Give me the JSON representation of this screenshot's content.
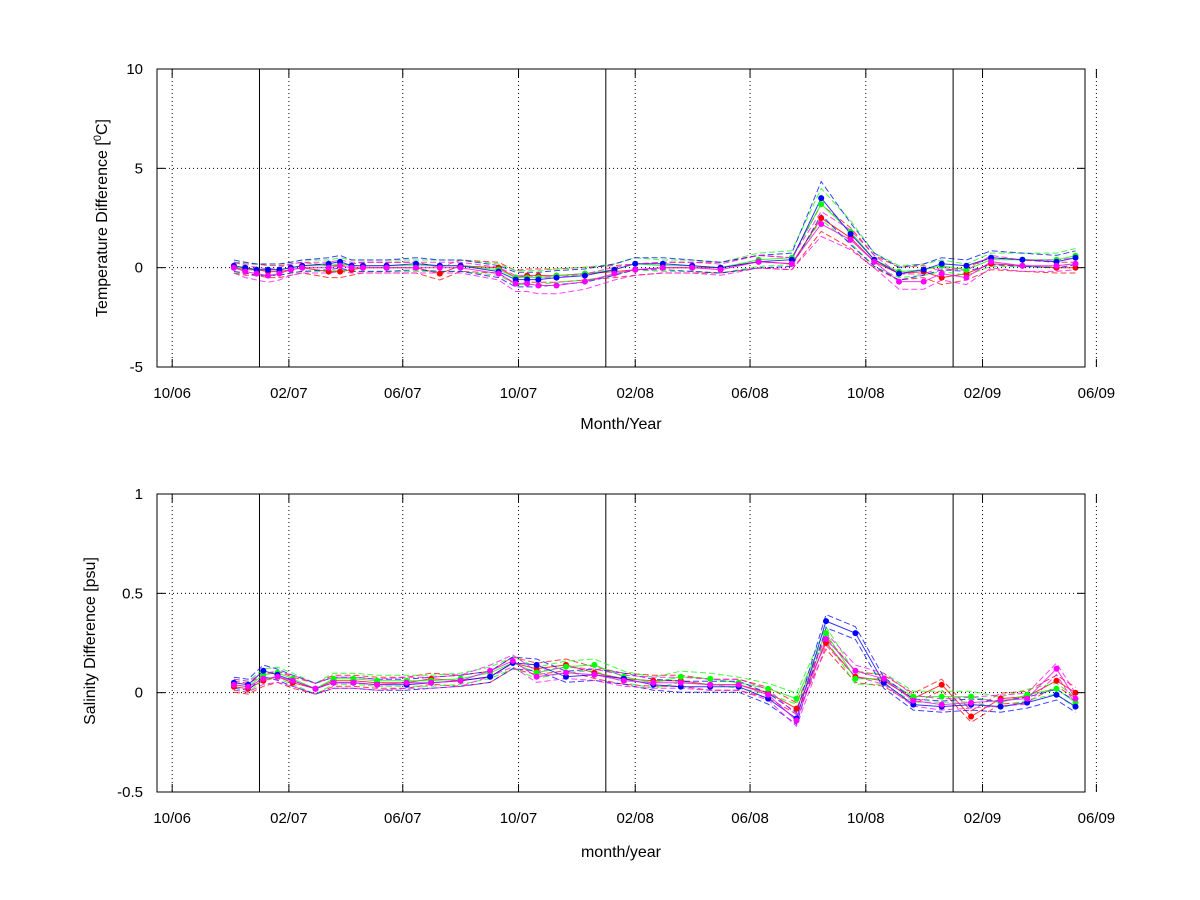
{
  "chart_data": [
    {
      "type": "scatter",
      "xlabel": "Month/Year",
      "ylabel": "Temperature Difference [°C]",
      "ylabel_parts": {
        "before": "Temperature Difference [",
        "sup": "0",
        "after": "C]"
      },
      "ylim": [
        -5,
        10
      ],
      "yticks": [
        -5,
        0,
        5,
        10
      ],
      "xlim": [
        "2006-09-15",
        "2009-05-20"
      ],
      "xticks": [
        "2006-10-01",
        "2007-02-01",
        "2007-06-01",
        "2007-10-01",
        "2008-02-01",
        "2008-06-01",
        "2008-10-01",
        "2009-02-01",
        "2009-06-01"
      ],
      "xtick_labels": [
        "10/06",
        "02/07",
        "06/07",
        "10/07",
        "02/08",
        "06/08",
        "10/08",
        "02/09",
        "06/09"
      ],
      "grid": true,
      "year_lines": [
        "2007-01-01",
        "2008-01-01",
        "2009-01-01"
      ],
      "series": [
        {
          "color": "#ff0000",
          "x": [
            "2006-12-05",
            "2006-12-17",
            "2006-12-29",
            "2007-01-10",
            "2007-01-22",
            "2007-02-03",
            "2007-02-15",
            "2007-03-15",
            "2007-03-27",
            "2007-04-08",
            "2007-04-20",
            "2007-05-15",
            "2007-06-15",
            "2007-07-10",
            "2007-08-01",
            "2007-09-10",
            "2007-09-28",
            "2007-10-10",
            "2007-10-22",
            "2007-11-10",
            "2007-12-10",
            "2008-01-10",
            "2008-02-01",
            "2008-03-01",
            "2008-04-01",
            "2008-05-01",
            "2008-06-10",
            "2008-07-15",
            "2008-08-15",
            "2008-09-15",
            "2008-10-10",
            "2008-11-05",
            "2008-12-01",
            "2008-12-20",
            "2009-01-15",
            "2009-02-10",
            "2009-03-15",
            "2009-04-20",
            "2009-05-10"
          ],
          "y": [
            0.0,
            -0.1,
            -0.1,
            -0.2,
            -0.2,
            -0.1,
            0.0,
            -0.2,
            -0.2,
            -0.1,
            0.0,
            0.0,
            0.0,
            -0.3,
            0.1,
            0.0,
            -0.5,
            -0.4,
            -0.4,
            -0.4,
            -0.3,
            -0.2,
            -0.1,
            0.0,
            0.0,
            0.0,
            0.3,
            0.2,
            2.5,
            1.5,
            0.3,
            -0.3,
            -0.2,
            -0.5,
            -0.3,
            0.2,
            0.1,
            0.0,
            0.0
          ]
        },
        {
          "color": "#00ff00",
          "x": [
            "2006-12-05",
            "2006-12-17",
            "2006-12-29",
            "2007-01-10",
            "2007-01-22",
            "2007-02-03",
            "2007-02-15",
            "2007-03-15",
            "2007-03-27",
            "2007-04-08",
            "2007-04-20",
            "2007-05-15",
            "2007-06-15",
            "2007-07-10",
            "2007-08-01",
            "2007-09-10",
            "2007-09-28",
            "2007-10-10",
            "2007-10-22",
            "2007-11-10",
            "2007-12-10",
            "2008-01-10",
            "2008-02-01",
            "2008-03-01",
            "2008-04-01",
            "2008-05-01",
            "2008-06-10",
            "2008-07-15",
            "2008-08-15",
            "2008-09-15",
            "2008-10-10",
            "2008-11-05",
            "2008-12-01",
            "2008-12-20",
            "2009-01-15",
            "2009-02-10",
            "2009-03-15",
            "2009-04-20",
            "2009-05-10"
          ],
          "y": [
            0.0,
            0.0,
            -0.1,
            -0.1,
            -0.1,
            0.0,
            0.1,
            0.1,
            0.2,
            0.1,
            0.1,
            0.1,
            0.1,
            0.1,
            0.1,
            -0.1,
            -0.5,
            -0.5,
            -0.5,
            -0.4,
            -0.3,
            -0.1,
            0.2,
            0.1,
            0.1,
            0.0,
            0.4,
            0.5,
            3.2,
            1.8,
            0.4,
            -0.2,
            -0.1,
            0.1,
            -0.1,
            0.4,
            0.4,
            0.4,
            0.6
          ]
        },
        {
          "color": "#0000ff",
          "x": [
            "2006-12-05",
            "2006-12-17",
            "2006-12-29",
            "2007-01-10",
            "2007-01-22",
            "2007-02-03",
            "2007-02-15",
            "2007-03-15",
            "2007-03-27",
            "2007-04-08",
            "2007-04-20",
            "2007-05-15",
            "2007-06-15",
            "2007-07-10",
            "2007-08-01",
            "2007-09-10",
            "2007-09-28",
            "2007-10-10",
            "2007-10-22",
            "2007-11-10",
            "2007-12-10",
            "2008-01-10",
            "2008-02-01",
            "2008-03-01",
            "2008-04-01",
            "2008-05-01",
            "2008-06-10",
            "2008-07-15",
            "2008-08-15",
            "2008-09-15",
            "2008-10-10",
            "2008-11-05",
            "2008-12-01",
            "2008-12-20",
            "2009-01-15",
            "2009-02-10",
            "2009-03-15",
            "2009-04-20",
            "2009-05-10"
          ],
          "y": [
            0.1,
            0.0,
            -0.1,
            -0.1,
            -0.1,
            0.0,
            0.1,
            0.2,
            0.3,
            0.1,
            0.1,
            0.1,
            0.2,
            0.1,
            0.1,
            -0.2,
            -0.6,
            -0.6,
            -0.6,
            -0.5,
            -0.4,
            -0.1,
            0.2,
            0.2,
            0.1,
            0.0,
            0.3,
            0.4,
            3.5,
            1.7,
            0.4,
            -0.3,
            -0.1,
            0.2,
            0.1,
            0.5,
            0.4,
            0.3,
            0.5
          ]
        },
        {
          "color": "#ff00ff",
          "x": [
            "2006-12-05",
            "2006-12-17",
            "2006-12-29",
            "2007-01-10",
            "2007-01-22",
            "2007-02-03",
            "2007-02-15",
            "2007-03-15",
            "2007-03-27",
            "2007-04-08",
            "2007-04-20",
            "2007-05-15",
            "2007-06-15",
            "2007-07-10",
            "2007-08-01",
            "2007-09-10",
            "2007-09-28",
            "2007-10-10",
            "2007-10-22",
            "2007-11-10",
            "2007-12-10",
            "2008-01-10",
            "2008-02-01",
            "2008-03-01",
            "2008-04-01",
            "2008-05-01",
            "2008-06-10",
            "2008-07-15",
            "2008-08-15",
            "2008-09-15",
            "2008-10-10",
            "2008-11-05",
            "2008-12-01",
            "2008-12-20",
            "2009-01-15",
            "2009-02-10",
            "2009-03-15",
            "2009-04-20",
            "2009-05-10"
          ],
          "y": [
            0.0,
            -0.2,
            -0.3,
            -0.4,
            -0.3,
            -0.1,
            0.0,
            0.0,
            0.1,
            0.0,
            0.0,
            0.0,
            0.0,
            0.0,
            0.0,
            -0.3,
            -0.8,
            -0.8,
            -0.9,
            -0.9,
            -0.7,
            -0.3,
            -0.1,
            0.0,
            0.0,
            -0.1,
            0.3,
            0.2,
            2.2,
            1.4,
            0.3,
            -0.7,
            -0.7,
            -0.3,
            -0.5,
            0.3,
            0.1,
            0.1,
            0.2
          ]
        }
      ]
    },
    {
      "type": "scatter",
      "xlabel": "month/year",
      "ylabel": "Salinity Difference [psu]",
      "ylim": [
        -0.5,
        1
      ],
      "yticks": [
        -0.5,
        0,
        0.5,
        1
      ],
      "ytick_labels": [
        "-0.5",
        "0",
        "0.5",
        "1"
      ],
      "xlim": [
        "2006-09-15",
        "2009-05-20"
      ],
      "xticks": [
        "2006-10-01",
        "2007-02-01",
        "2007-06-01",
        "2007-10-01",
        "2008-02-01",
        "2008-06-01",
        "2008-10-01",
        "2009-02-01",
        "2009-06-01"
      ],
      "xtick_labels": [
        "10/06",
        "02/07",
        "06/07",
        "10/07",
        "02/08",
        "06/08",
        "10/08",
        "02/09",
        "06/09"
      ],
      "grid": true,
      "year_lines": [
        "2007-01-01",
        "2008-01-01",
        "2009-01-01"
      ],
      "series": [
        {
          "color": "#ff0000",
          "x": [
            "2006-12-05",
            "2006-12-20",
            "2007-01-05",
            "2007-01-20",
            "2007-02-05",
            "2007-03-01",
            "2007-03-20",
            "2007-04-10",
            "2007-05-05",
            "2007-06-05",
            "2007-07-01",
            "2007-08-01",
            "2007-09-01",
            "2007-09-25",
            "2007-10-20",
            "2007-11-20",
            "2007-12-20",
            "2008-01-20",
            "2008-02-20",
            "2008-03-20",
            "2008-04-20",
            "2008-05-20",
            "2008-06-20",
            "2008-07-20",
            "2008-08-20",
            "2008-09-20",
            "2008-10-20",
            "2008-11-20",
            "2008-12-20",
            "2009-01-20",
            "2009-02-20",
            "2009-03-20",
            "2009-04-20",
            "2009-05-10"
          ],
          "y": [
            0.03,
            0.02,
            0.06,
            0.08,
            0.05,
            0.02,
            0.06,
            0.06,
            0.05,
            0.05,
            0.07,
            0.06,
            0.08,
            0.15,
            0.12,
            0.14,
            0.1,
            0.07,
            0.06,
            0.06,
            0.04,
            0.04,
            0.0,
            -0.08,
            0.25,
            0.08,
            0.06,
            -0.03,
            0.04,
            -0.12,
            -0.03,
            -0.02,
            0.06,
            0.0
          ]
        },
        {
          "color": "#00ff00",
          "x": [
            "2006-12-05",
            "2006-12-20",
            "2007-01-05",
            "2007-01-20",
            "2007-02-05",
            "2007-03-01",
            "2007-03-20",
            "2007-04-10",
            "2007-05-05",
            "2007-06-05",
            "2007-07-01",
            "2007-08-01",
            "2007-09-01",
            "2007-09-25",
            "2007-10-20",
            "2007-11-20",
            "2007-12-20",
            "2008-01-20",
            "2008-02-20",
            "2008-03-20",
            "2008-04-20",
            "2008-05-20",
            "2008-06-20",
            "2008-07-20",
            "2008-08-20",
            "2008-09-20",
            "2008-10-20",
            "2008-11-20",
            "2008-12-20",
            "2009-01-20",
            "2009-02-20",
            "2009-03-20",
            "2009-04-20",
            "2009-05-10"
          ],
          "y": [
            0.04,
            0.03,
            0.09,
            0.1,
            0.07,
            0.02,
            0.07,
            0.07,
            0.06,
            0.06,
            0.06,
            0.07,
            0.1,
            0.15,
            0.1,
            0.13,
            0.14,
            0.08,
            0.05,
            0.08,
            0.07,
            0.05,
            0.02,
            -0.03,
            0.3,
            0.07,
            0.07,
            -0.02,
            -0.02,
            -0.02,
            -0.05,
            -0.01,
            0.02,
            -0.05
          ]
        },
        {
          "color": "#0000ff",
          "x": [
            "2006-12-05",
            "2006-12-20",
            "2007-01-05",
            "2007-01-20",
            "2007-02-05",
            "2007-03-01",
            "2007-03-20",
            "2007-04-10",
            "2007-05-05",
            "2007-06-05",
            "2007-07-01",
            "2007-08-01",
            "2007-09-01",
            "2007-09-25",
            "2007-10-20",
            "2007-11-20",
            "2007-12-20",
            "2008-01-20",
            "2008-02-20",
            "2008-03-20",
            "2008-04-20",
            "2008-05-20",
            "2008-06-20",
            "2008-07-20",
            "2008-08-20",
            "2008-09-20",
            "2008-10-20",
            "2008-11-20",
            "2008-12-20",
            "2009-01-20",
            "2009-02-20",
            "2009-03-20",
            "2009-04-20",
            "2009-05-10"
          ],
          "y": [
            0.05,
            0.04,
            0.11,
            0.09,
            0.06,
            0.02,
            0.05,
            0.05,
            0.04,
            0.04,
            0.05,
            0.06,
            0.08,
            0.15,
            0.14,
            0.08,
            0.09,
            0.07,
            0.04,
            0.03,
            0.03,
            0.03,
            -0.03,
            -0.13,
            0.36,
            0.3,
            0.05,
            -0.06,
            -0.07,
            -0.06,
            -0.07,
            -0.05,
            -0.01,
            -0.07
          ]
        },
        {
          "color": "#ff00ff",
          "x": [
            "2006-12-05",
            "2006-12-20",
            "2007-01-05",
            "2007-01-20",
            "2007-02-05",
            "2007-03-01",
            "2007-03-20",
            "2007-04-10",
            "2007-05-05",
            "2007-06-05",
            "2007-07-01",
            "2007-08-01",
            "2007-09-01",
            "2007-09-25",
            "2007-10-20",
            "2007-11-20",
            "2007-12-20",
            "2008-01-20",
            "2008-02-20",
            "2008-03-20",
            "2008-04-20",
            "2008-05-20",
            "2008-06-20",
            "2008-07-20",
            "2008-08-20",
            "2008-09-20",
            "2008-10-20",
            "2008-11-20",
            "2008-12-20",
            "2009-01-20",
            "2009-02-20",
            "2009-03-20",
            "2009-04-20",
            "2009-05-10"
          ],
          "y": [
            0.04,
            0.03,
            0.07,
            0.08,
            0.06,
            0.02,
            0.05,
            0.05,
            0.04,
            0.05,
            0.05,
            0.06,
            0.11,
            0.16,
            0.08,
            0.1,
            0.09,
            0.06,
            0.05,
            0.05,
            0.04,
            0.04,
            -0.01,
            -0.14,
            0.27,
            0.11,
            0.07,
            -0.04,
            -0.06,
            -0.05,
            -0.04,
            -0.03,
            0.12,
            -0.03
          ]
        }
      ]
    }
  ]
}
